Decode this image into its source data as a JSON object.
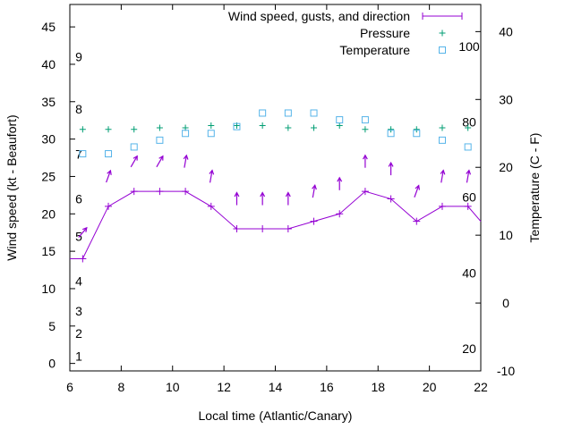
{
  "chart_data": {
    "type": "line",
    "xlabel": "Local time (Atlantic/Canary)",
    "ylabel": "Wind speed (kt - Beaufort)",
    "y2label": "Temperature (C - F)",
    "xlim": [
      6,
      22
    ],
    "ylim": [
      -1,
      48
    ],
    "y2lim": [
      -10,
      44
    ],
    "x_ticks": [
      6,
      8,
      10,
      12,
      14,
      16,
      18,
      20,
      22
    ],
    "y_ticks": [
      0,
      5,
      10,
      15,
      20,
      25,
      30,
      35,
      40,
      45
    ],
    "y2_ticks": [
      -10,
      0,
      10,
      20,
      30,
      40
    ],
    "beaufort_labels": [
      {
        "label": "1",
        "kt": 1
      },
      {
        "label": "2",
        "kt": 4
      },
      {
        "label": "3",
        "kt": 7
      },
      {
        "label": "4",
        "kt": 11
      },
      {
        "label": "5",
        "kt": 17
      },
      {
        "label": "6",
        "kt": 22
      },
      {
        "label": "7",
        "kt": 28
      },
      {
        "label": "8",
        "kt": 34
      },
      {
        "label": "9",
        "kt": 41
      }
    ],
    "fahrenheit_labels": [
      {
        "label": "20",
        "celsius": -6.7
      },
      {
        "label": "40",
        "celsius": 4.4
      },
      {
        "label": "60",
        "celsius": 15.6
      },
      {
        "label": "80",
        "celsius": 26.7
      },
      {
        "label": "100",
        "celsius": 37.8
      }
    ],
    "legend": {
      "wind": "Wind speed, gusts, and direction",
      "pressure": "Pressure",
      "temperature": "Temperature"
    },
    "series": [
      {
        "name": "Wind speed, gusts, and direction",
        "x": [
          6,
          6.5,
          7.5,
          8.5,
          9.5,
          10.5,
          11.5,
          12.5,
          13.5,
          14.5,
          15.5,
          16.5,
          17.5,
          18.5,
          19.5,
          20.5,
          21.5,
          22
        ],
        "values": [
          14,
          14,
          21,
          23,
          23,
          23,
          21,
          18,
          18,
          18,
          19,
          20,
          23,
          22,
          19,
          21,
          21,
          19
        ]
      },
      {
        "name": "Pressure",
        "x": [
          6.5,
          7.5,
          8.5,
          9.5,
          10.5,
          11.5,
          12.5,
          13.5,
          14.5,
          15.5,
          16.5,
          17.5,
          18.5,
          19.5,
          20.5,
          21.5
        ],
        "values": [
          31.3,
          31.3,
          31.3,
          31.5,
          31.5,
          31.8,
          31.8,
          31.8,
          31.5,
          31.5,
          31.8,
          31.3,
          31.3,
          31.3,
          31.5,
          31.5
        ]
      },
      {
        "name": "Temperature",
        "x": [
          6.5,
          7.5,
          8.5,
          9.5,
          10.5,
          11.5,
          12.5,
          13.5,
          14.5,
          15.5,
          16.5,
          17.5,
          18.5,
          19.5,
          20.5,
          21.5
        ],
        "values": [
          22,
          22,
          23,
          24,
          25,
          25,
          26,
          28,
          28,
          28,
          27,
          27,
          25,
          25,
          24,
          23
        ]
      },
      {
        "name": "Wind direction arrows",
        "x": [
          6.5,
          7.5,
          8.5,
          9.5,
          10.5,
          11.5,
          12.5,
          13.5,
          14.5,
          15.5,
          16.5,
          17.5,
          18.5,
          19.5,
          20.5,
          21.5
        ],
        "y": [
          17.5,
          25,
          27,
          27,
          27,
          25,
          22,
          22,
          22,
          23,
          24,
          27,
          26,
          23,
          25,
          25
        ],
        "direction_deg": [
          220,
          200,
          210,
          210,
          190,
          190,
          180,
          180,
          180,
          190,
          180,
          180,
          180,
          200,
          190,
          190
        ]
      }
    ],
    "colors": {
      "wind": "#9400d3",
      "pressure": "#009e73",
      "temperature": "#56b4e9"
    }
  }
}
